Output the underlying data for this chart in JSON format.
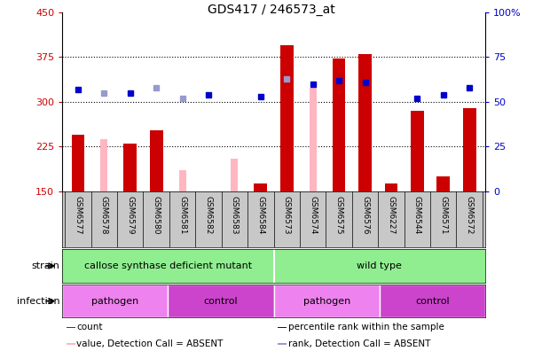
{
  "title": "GDS417 / 246573_at",
  "samples": [
    "GSM6577",
    "GSM6578",
    "GSM6579",
    "GSM6580",
    "GSM6581",
    "GSM6582",
    "GSM6583",
    "GSM6584",
    "GSM6573",
    "GSM6574",
    "GSM6575",
    "GSM6576",
    "GSM6227",
    "GSM6544",
    "GSM6571",
    "GSM6572"
  ],
  "counts": [
    245,
    null,
    230,
    252,
    null,
    null,
    null,
    163,
    395,
    null,
    372,
    380,
    163,
    285,
    175,
    290
  ],
  "counts_absent": [
    null,
    237,
    null,
    null,
    185,
    null,
    205,
    null,
    null,
    323,
    null,
    null,
    null,
    null,
    null,
    null
  ],
  "ranks": [
    57,
    null,
    55,
    null,
    null,
    54,
    null,
    53,
    null,
    60,
    62,
    61,
    null,
    52,
    54,
    58
  ],
  "ranks_absent": [
    null,
    55,
    null,
    58,
    52,
    null,
    null,
    null,
    63,
    null,
    null,
    null,
    null,
    null,
    null,
    null
  ],
  "ylim_left": [
    150,
    450
  ],
  "ylim_right": [
    0,
    100
  ],
  "yticks_left": [
    150,
    225,
    300,
    375,
    450
  ],
  "yticks_right": [
    0,
    25,
    50,
    75,
    100
  ],
  "ytick_labels_right": [
    "0",
    "25",
    "50",
    "75",
    "100%"
  ],
  "hlines": [
    225,
    300,
    375
  ],
  "bar_color_present": "#cc0000",
  "bar_color_absent": "#ffb6c1",
  "rank_color_present": "#0000cc",
  "rank_color_absent": "#9999cc",
  "bar_width": 0.5,
  "rank_marker_size": 5,
  "left_axis_color": "#cc0000",
  "right_axis_color": "#0000cc",
  "plot_bg_color": "#ffffff",
  "xtick_bg_color": "#c8c8c8",
  "strain_color": "#90ee90",
  "pathogen_color": "#ee82ee",
  "control_color": "#cc44cc",
  "strain_groups": [
    {
      "label": "callose synthase deficient mutant",
      "start": 0,
      "end": 8
    },
    {
      "label": "wild type",
      "start": 8,
      "end": 16
    }
  ],
  "infection_groups": [
    {
      "label": "pathogen",
      "start": 0,
      "end": 4
    },
    {
      "label": "control",
      "start": 4,
      "end": 8
    },
    {
      "label": "pathogen",
      "start": 8,
      "end": 12
    },
    {
      "label": "control",
      "start": 12,
      "end": 16
    }
  ]
}
